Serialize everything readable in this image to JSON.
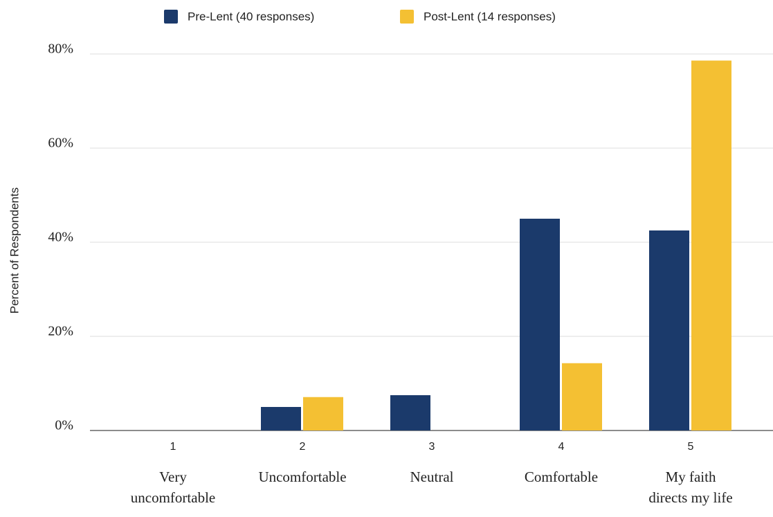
{
  "chart_data": {
    "type": "bar",
    "y_label": "Percent of Respondents",
    "categories": [
      "1",
      "2",
      "3",
      "4",
      "5"
    ],
    "category_descriptions": [
      [
        "Very",
        "uncomfortable"
      ],
      [
        "Uncomfortable"
      ],
      [
        "Neutral"
      ],
      [
        "Comfortable"
      ],
      [
        "My faith",
        "directs my life"
      ]
    ],
    "series": [
      {
        "name": "Pre-Lent (40 responses)",
        "color": "#1b3a6b",
        "values": [
          0,
          5,
          7.5,
          45,
          42.5
        ]
      },
      {
        "name": "Post-Lent (14 responses)",
        "color": "#f4c033",
        "values": [
          0,
          7.1,
          0,
          14.3,
          78.6
        ]
      }
    ],
    "ylim": [
      0,
      80
    ],
    "yticks": [
      {
        "value": 0,
        "label": "0%"
      },
      {
        "value": 20,
        "label": "20%"
      },
      {
        "value": 40,
        "label": "40%"
      },
      {
        "value": 60,
        "label": "60%"
      },
      {
        "value": 80,
        "label": "80%"
      }
    ],
    "grid": true,
    "legend": "top"
  }
}
